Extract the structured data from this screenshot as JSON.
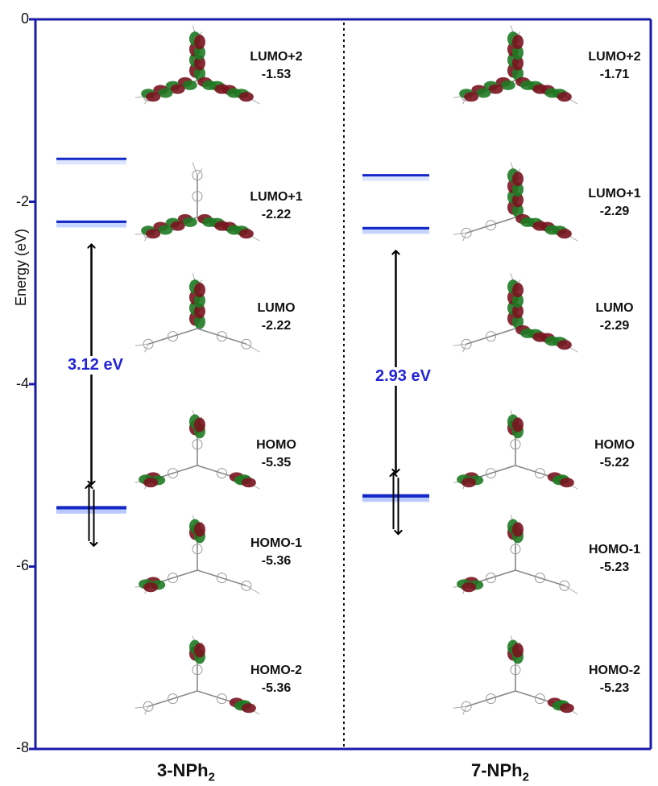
{
  "axis": {
    "ylabel": "Energy (eV)",
    "ticks": [
      "0",
      "-2",
      "-4",
      "-6",
      "-8"
    ],
    "ylim": [
      -8,
      0
    ]
  },
  "colors": {
    "frame": "#1a1aa8",
    "level": "#1428c8",
    "gap_text": "#2323d8",
    "lobe_red": "#7a1420",
    "lobe_green": "#1f7a23"
  },
  "compounds": [
    {
      "name": "3-NPh",
      "subscript": "2",
      "gap_label": "3.12 eV",
      "lumo_levels": [
        -1.53,
        -2.22,
        -2.22
      ],
      "homo_levels": [
        -5.35,
        -5.36,
        -5.36
      ],
      "orbitals": [
        {
          "name": "LUMO+2",
          "energy": "-1.53"
        },
        {
          "name": "LUMO+1",
          "energy": "-2.22"
        },
        {
          "name": "LUMO",
          "energy": "-2.22"
        },
        {
          "name": "HOMO",
          "energy": "-5.35"
        },
        {
          "name": "HOMO-1",
          "energy": "-5.36"
        },
        {
          "name": "HOMO-2",
          "energy": "-5.36"
        }
      ]
    },
    {
      "name": "7-NPh",
      "subscript": "2",
      "gap_label": "2.93 eV",
      "lumo_levels": [
        -1.71,
        -2.29,
        -2.29
      ],
      "homo_levels": [
        -5.22,
        -5.23,
        -5.23
      ],
      "orbitals": [
        {
          "name": "LUMO+2",
          "energy": "-1.71"
        },
        {
          "name": "LUMO+1",
          "energy": "-2.29"
        },
        {
          "name": "LUMO",
          "energy": "-2.29"
        },
        {
          "name": "HOMO",
          "energy": "-5.22"
        },
        {
          "name": "HOMO-1",
          "energy": "-5.23"
        },
        {
          "name": "HOMO-2",
          "energy": "-5.23"
        }
      ]
    }
  ]
}
